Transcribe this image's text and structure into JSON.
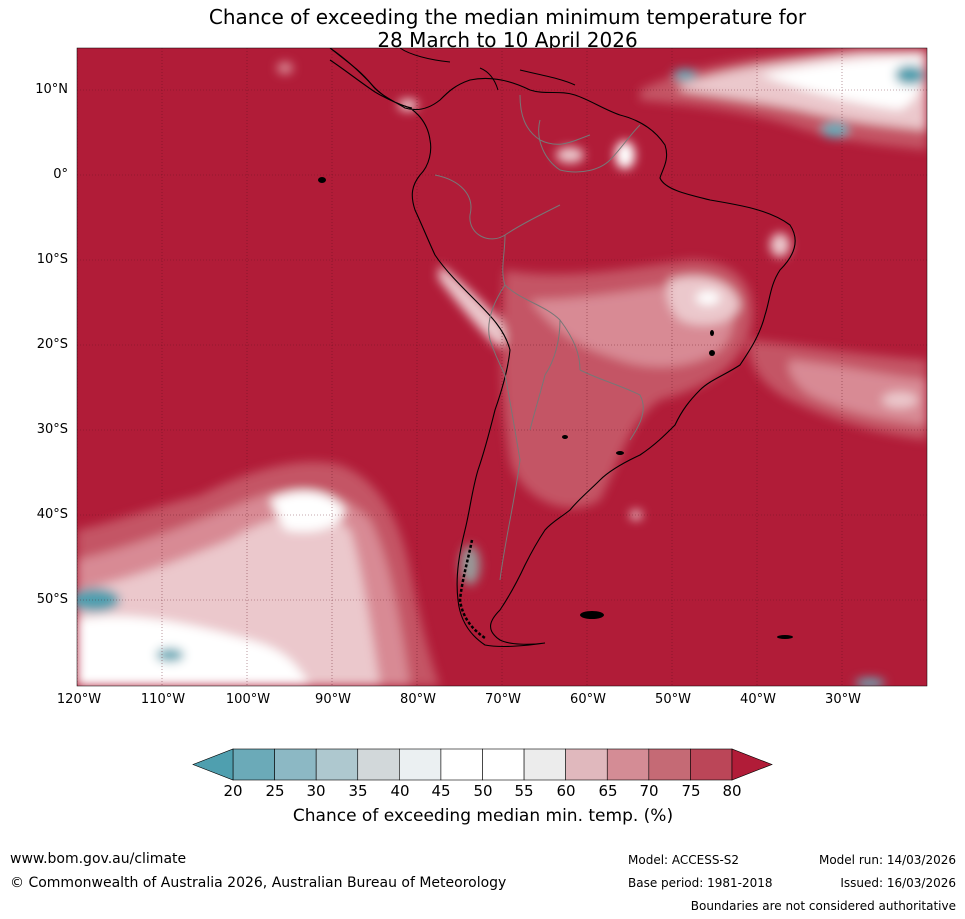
{
  "title": {
    "line1": "Chance of exceeding the median minimum temperature for",
    "line2": "28 March to 10 April 2026"
  },
  "lat_labels": [
    "10°N",
    "0°",
    "10°S",
    "20°S",
    "30°S",
    "40°S",
    "50°S"
  ],
  "lon_labels": [
    "120°W",
    "110°W",
    "100°W",
    "90°W",
    "80°W",
    "70°W",
    "60°W",
    "50°W",
    "40°W",
    "30°W"
  ],
  "colorbar": {
    "ticks": [
      "20",
      "25",
      "30",
      "35",
      "40",
      "45",
      "50",
      "55",
      "60",
      "65",
      "70",
      "75",
      "80"
    ],
    "colors": [
      "#6baab8",
      "#8cb8c4",
      "#aec8cf",
      "#d2d8da",
      "#ebf0f2",
      "#ffffff",
      "#ffffff",
      "#ececec",
      "#e0b8bd",
      "#d48c95",
      "#c56a75",
      "#bb4658"
    ],
    "under_color": "#4f9faf",
    "over_color": "#b11c38",
    "label": "Chance of exceeding median min. temp. (%)"
  },
  "map_colors": {
    "high": "#b11c38",
    "mid_high": "#c45565",
    "mid": "#d88a94",
    "low_mid": "#ebc8cc",
    "neutral": "#ffffff",
    "cool": "#4f9faf"
  },
  "footer": {
    "url": "www.bom.gov.au/climate",
    "copyright": "© Commonwealth of Australia 2026, Australian Bureau of Meteorology",
    "model": "Model: ACCESS-S2",
    "base_period": "Base period: 1981-2018",
    "model_run": "Model run: 14/03/2026",
    "issued": "Issued: 16/03/2026",
    "boundaries": "Boundaries are not considered authoritative"
  }
}
